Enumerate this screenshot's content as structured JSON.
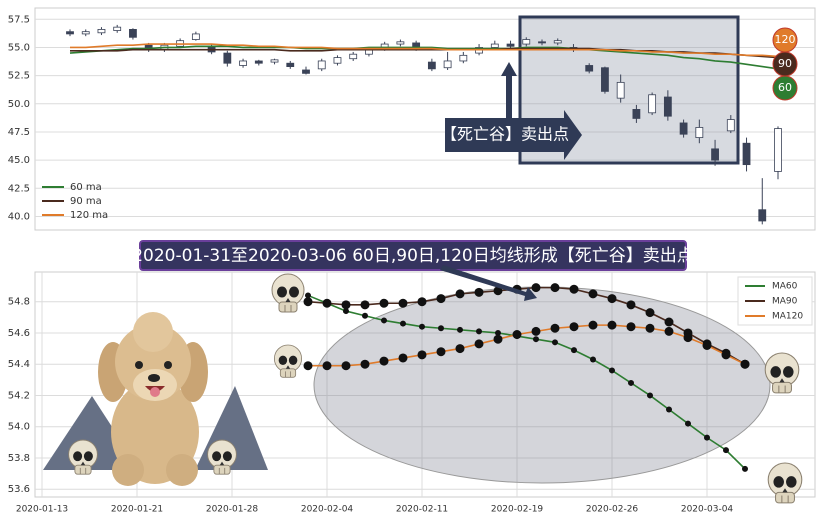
{
  "chart_data": [
    {
      "type": "candlestick",
      "open": [
        56.4,
        56.2,
        56.3,
        56.5,
        56.6,
        55.2,
        54.8,
        55.1,
        55.7,
        55.1,
        54.5,
        53.4,
        53.8,
        53.7,
        53.6,
        53.0,
        53.1,
        53.6,
        54.0,
        54.4,
        54.9,
        55.3,
        55.4,
        53.7,
        53.2,
        53.8,
        54.5,
        55.0,
        55.3,
        55.3,
        55.5,
        55.4,
        55.0,
        53.4,
        53.2,
        50.5,
        49.5,
        49.2,
        50.6,
        48.3,
        47.0,
        46.0,
        47.6,
        46.5,
        40.6,
        44.0
      ],
      "high": [
        56.6,
        56.6,
        56.8,
        57.0,
        56.7,
        55.4,
        55.4,
        55.8,
        56.4,
        55.3,
        54.7,
        54.0,
        53.9,
        54.0,
        53.8,
        53.3,
        54.0,
        54.3,
        54.6,
        55.0,
        55.5,
        55.7,
        55.6,
        54.0,
        54.6,
        54.6,
        55.3,
        55.6,
        55.6,
        55.9,
        55.7,
        55.8,
        55.3,
        53.6,
        53.3,
        52.6,
        49.9,
        51.0,
        51.2,
        48.6,
        48.6,
        46.8,
        49.0,
        47.0,
        43.4,
        48.0
      ],
      "low": [
        56.0,
        56.0,
        56.1,
        56.3,
        55.7,
        54.6,
        54.6,
        55.0,
        55.6,
        54.4,
        53.3,
        53.2,
        53.4,
        53.5,
        53.1,
        52.6,
        52.9,
        53.4,
        53.8,
        54.2,
        54.7,
        55.1,
        54.7,
        52.9,
        53.0,
        53.6,
        54.3,
        54.8,
        54.9,
        55.1,
        55.2,
        55.2,
        54.6,
        52.7,
        50.9,
        50.1,
        48.3,
        49.0,
        48.5,
        47.0,
        46.5,
        44.5,
        47.4,
        44.0,
        39.3,
        43.3
      ],
      "close": [
        56.2,
        56.4,
        56.6,
        56.8,
        55.9,
        54.9,
        55.2,
        55.6,
        56.2,
        54.6,
        53.6,
        53.8,
        53.6,
        53.9,
        53.3,
        52.7,
        53.8,
        54.1,
        54.4,
        54.8,
        55.3,
        55.5,
        54.9,
        53.1,
        53.8,
        54.3,
        55.0,
        55.3,
        55.1,
        55.7,
        55.4,
        55.6,
        54.8,
        52.9,
        51.1,
        51.9,
        48.7,
        50.8,
        48.9,
        47.3,
        47.9,
        45.0,
        48.6,
        44.6,
        39.6,
        47.8
      ],
      "up_color": "#ffffff",
      "down_color": "#3a4257",
      "lines": [
        {
          "name": "60 ma",
          "color": "#2e7d32",
          "end_label": "60",
          "values": [
            54.5,
            54.6,
            54.7,
            54.8,
            54.9,
            54.9,
            55.0,
            55.0,
            55.1,
            55.1,
            55.1,
            55.0,
            55.0,
            55.0,
            55.0,
            54.9,
            54.9,
            54.9,
            54.9,
            55.0,
            55.0,
            55.0,
            55.0,
            55.0,
            54.9,
            54.9,
            54.9,
            54.9,
            54.9,
            55.0,
            55.0,
            55.0,
            54.9,
            54.8,
            54.7,
            54.6,
            54.5,
            54.4,
            54.3,
            54.1,
            54.0,
            53.8,
            53.7,
            53.5,
            53.3,
            53.1
          ]
        },
        {
          "name": "90 ma",
          "color": "#4a2a1e",
          "end_label": "90",
          "values": [
            54.7,
            54.7,
            54.7,
            54.7,
            54.8,
            54.8,
            54.8,
            54.8,
            54.8,
            54.8,
            54.8,
            54.8,
            54.8,
            54.8,
            54.7,
            54.7,
            54.7,
            54.8,
            54.8,
            54.8,
            54.8,
            54.8,
            54.8,
            54.8,
            54.8,
            54.8,
            54.8,
            54.8,
            54.9,
            54.9,
            54.9,
            54.9,
            54.9,
            54.9,
            54.8,
            54.8,
            54.7,
            54.7,
            54.6,
            54.6,
            54.5,
            54.5,
            54.4,
            54.3,
            54.2,
            54.1
          ]
        },
        {
          "name": "120 ma",
          "color": "#e07b2a",
          "end_label": "120",
          "values": [
            55.0,
            55.0,
            55.1,
            55.2,
            55.2,
            55.3,
            55.3,
            55.3,
            55.3,
            55.3,
            55.2,
            55.2,
            55.1,
            55.1,
            55.0,
            55.0,
            55.0,
            54.9,
            54.9,
            54.9,
            54.9,
            54.9,
            54.9,
            54.9,
            54.8,
            54.8,
            54.8,
            54.8,
            54.8,
            54.8,
            54.8,
            54.8,
            54.8,
            54.8,
            54.8,
            54.7,
            54.7,
            54.6,
            54.6,
            54.5,
            54.5,
            54.4,
            54.4,
            54.3,
            54.3,
            54.2
          ]
        }
      ],
      "ylim": [
        38.8,
        58.5
      ],
      "yticks": [
        {
          "value": 40,
          "label": "40.0"
        },
        42.5,
        {
          "value": 45,
          "label": "45.0"
        },
        47.5,
        {
          "value": 50,
          "label": "50.0"
        },
        52.5,
        {
          "value": 55,
          "label": "55.0"
        },
        57.5
      ],
      "grid": true,
      "legend": "lower left",
      "annotation": "【死亡谷】卖出点"
    },
    {
      "type": "line",
      "title": "2020-01-31至2020-03-06 60日,90日,120日均线形成【死亡谷】卖出点",
      "categories": [
        "2020-01-13",
        null,
        null,
        null,
        null,
        "2020-01-21",
        null,
        null,
        null,
        null,
        "2020-01-28",
        null,
        null,
        null,
        null,
        "2020-02-04",
        null,
        null,
        null,
        null,
        "2020-02-11",
        null,
        null,
        null,
        null,
        "2020-02-19",
        null,
        null,
        null,
        null,
        "2020-02-26",
        null,
        null,
        null,
        null,
        "2020-03-04",
        null,
        null
      ],
      "series": [
        {
          "name": "MA60",
          "color": "#2e7d32",
          "values": [
            null,
            null,
            null,
            null,
            null,
            null,
            null,
            null,
            null,
            null,
            null,
            null,
            null,
            null,
            54.84,
            54.79,
            54.74,
            54.71,
            54.68,
            54.66,
            54.64,
            54.63,
            54.62,
            54.61,
            54.6,
            54.58,
            54.56,
            54.54,
            54.49,
            54.43,
            54.36,
            54.28,
            54.2,
            54.11,
            54.02,
            53.93,
            53.85,
            53.73
          ]
        },
        {
          "name": "MA90",
          "color": "#4a2a1e",
          "values": [
            null,
            null,
            null,
            null,
            null,
            null,
            null,
            null,
            null,
            null,
            null,
            null,
            null,
            null,
            54.8,
            54.79,
            54.78,
            54.78,
            54.79,
            54.79,
            54.8,
            54.82,
            54.85,
            54.86,
            54.87,
            54.88,
            54.89,
            54.89,
            54.88,
            54.85,
            54.82,
            54.78,
            54.73,
            54.67,
            54.6,
            54.53,
            54.47,
            54.4
          ]
        },
        {
          "name": "MA120",
          "color": "#e07b2a",
          "values": [
            null,
            null,
            null,
            null,
            null,
            null,
            null,
            null,
            null,
            null,
            null,
            null,
            null,
            null,
            54.39,
            54.39,
            54.39,
            54.4,
            54.42,
            54.44,
            54.46,
            54.48,
            54.5,
            54.53,
            54.56,
            54.59,
            54.61,
            54.63,
            54.64,
            54.65,
            54.65,
            54.64,
            54.63,
            54.61,
            54.57,
            54.52,
            54.46,
            54.4
          ]
        }
      ],
      "ylim": [
        53.55,
        54.99
      ],
      "yticks": [
        53.6,
        53.8,
        {
          "value": 54,
          "label": "54.0"
        },
        54.2,
        54.4,
        54.6,
        54.8
      ],
      "grid": true,
      "legend": "upper right",
      "markers": true
    }
  ]
}
